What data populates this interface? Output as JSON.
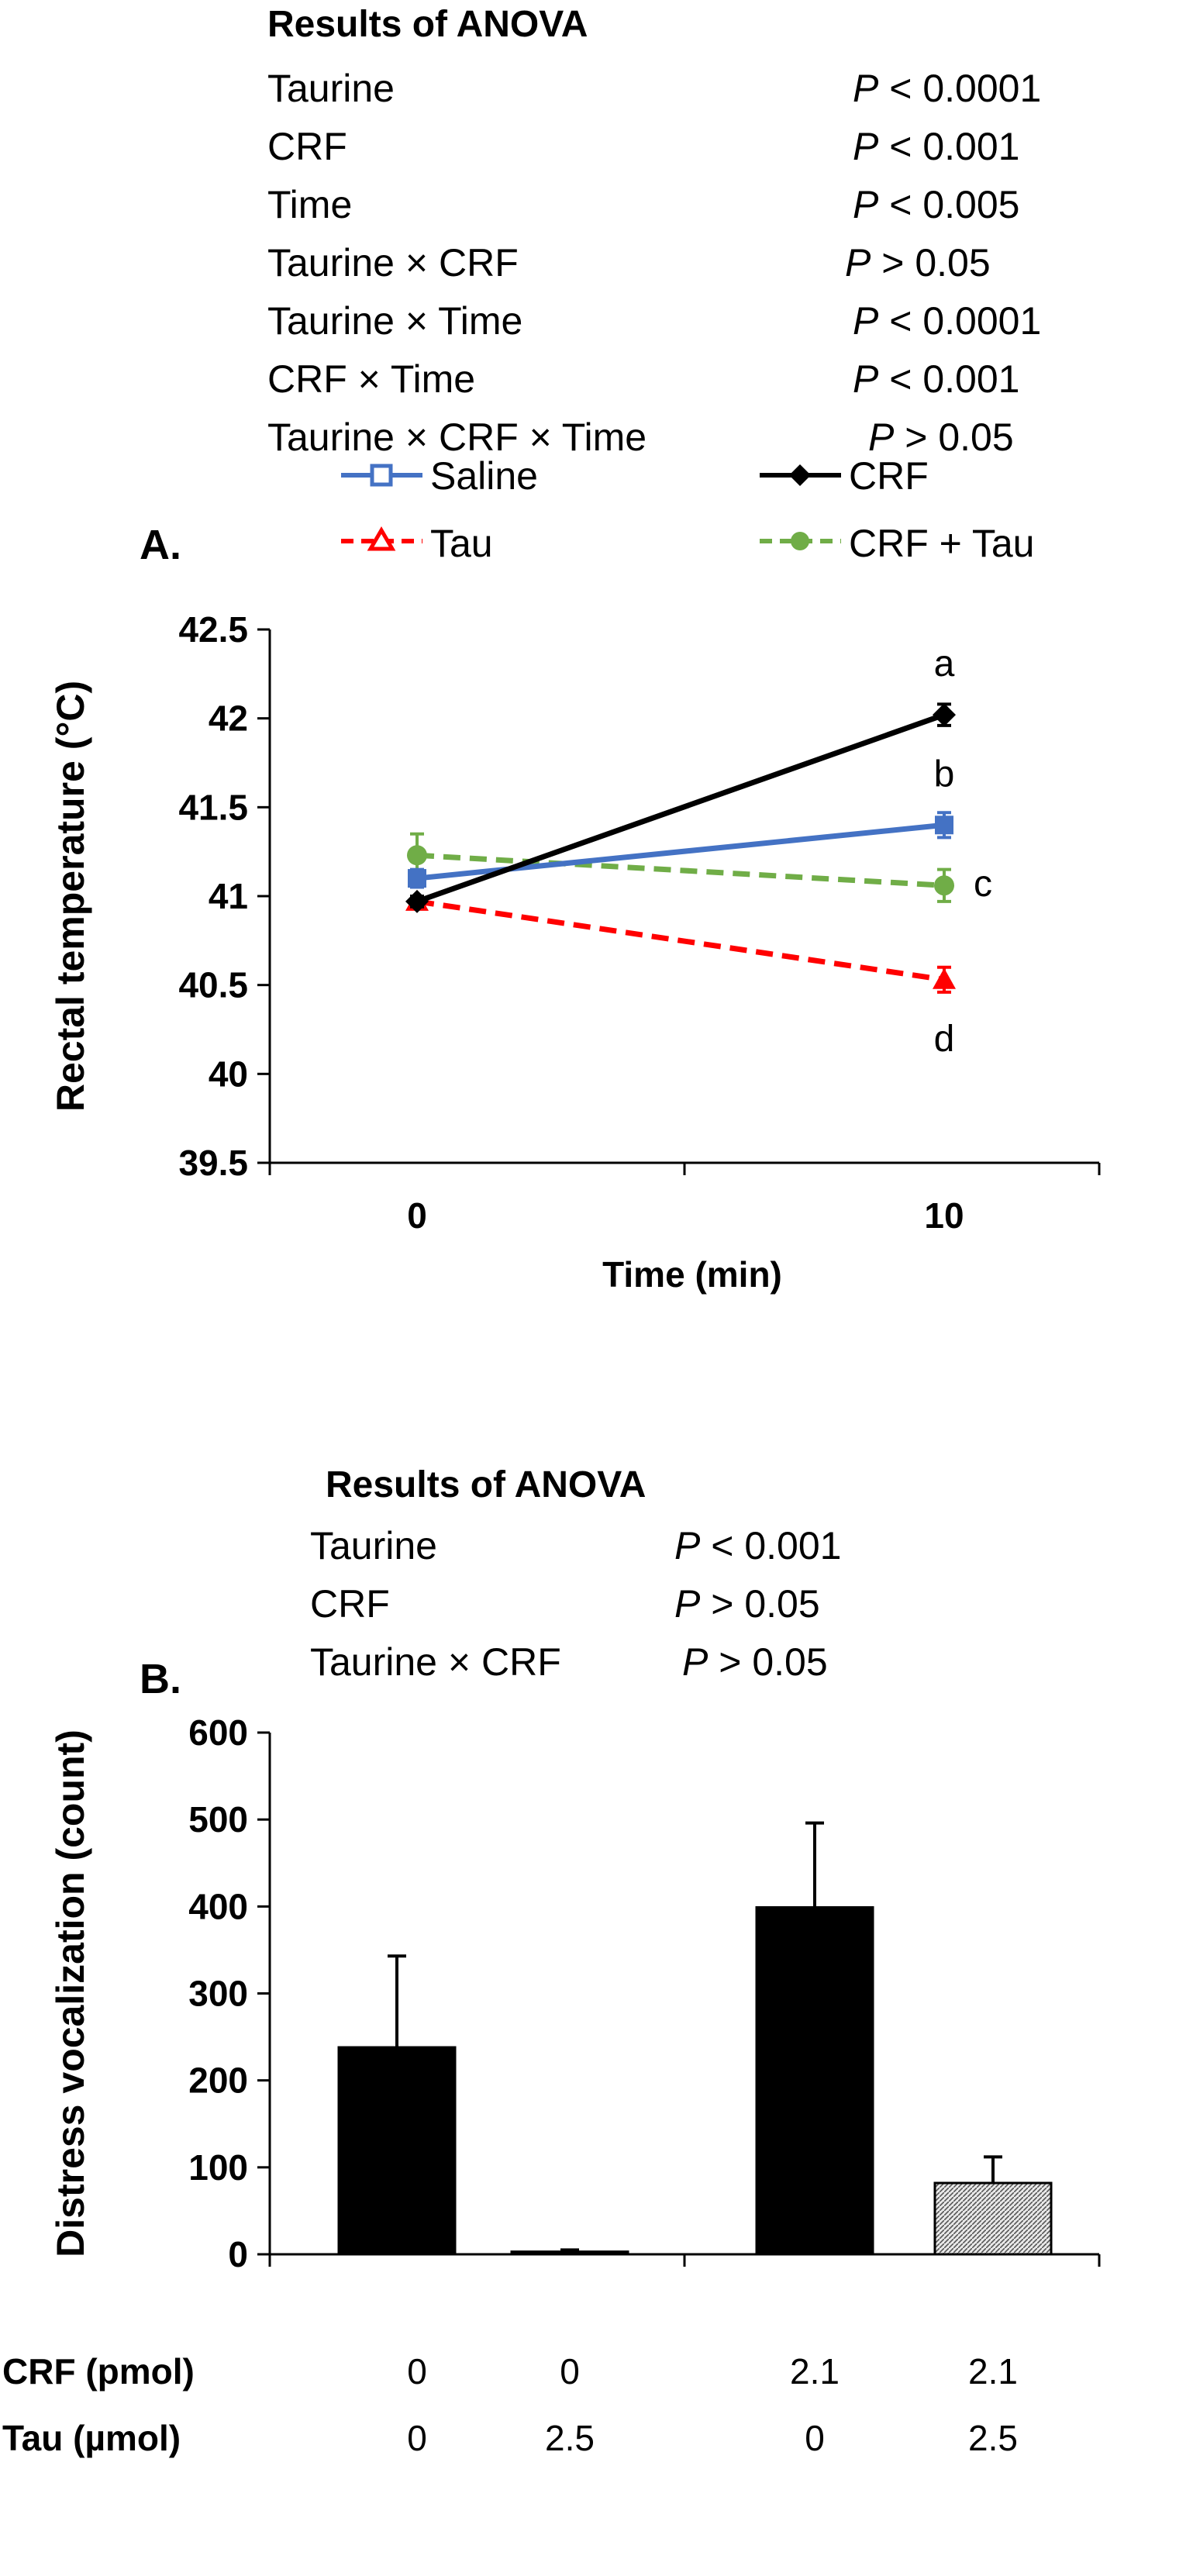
{
  "panelA": {
    "label": "A.",
    "anova_title": "Results of ANOVA",
    "anova_rows": [
      {
        "factor": "Taurine",
        "p": "< 0.0001"
      },
      {
        "factor": "CRF",
        "p": "< 0.001"
      },
      {
        "factor": "Time",
        "p": "< 0.005"
      },
      {
        "factor": "Taurine × CRF",
        "p": "> 0.05"
      },
      {
        "factor": "Taurine × Time",
        "p": "< 0.0001"
      },
      {
        "factor": "CRF × Time",
        "p": "< 0.001"
      },
      {
        "factor": "Taurine × CRF × Time",
        "p": "> 0.05"
      }
    ],
    "p_symbol": "P"
  },
  "panelB": {
    "label": "B.",
    "anova_title": "Results of ANOVA",
    "anova_rows": [
      {
        "factor": "Taurine",
        "p": "< 0.001"
      },
      {
        "factor": "CRF",
        "p": "> 0.05"
      },
      {
        "factor": "Taurine × CRF",
        "p": "> 0.05"
      }
    ],
    "p_symbol": "P",
    "row_labels": {
      "crf": "CRF (pmol)",
      "tau": "Tau (µmol)"
    },
    "crf_values": [
      "0",
      "0",
      "2.1",
      "2.1"
    ],
    "tau_values": [
      "0",
      "2.5",
      "0",
      "2.5"
    ]
  },
  "chart_data": [
    {
      "type": "line",
      "ylabel": "Rectal temperature (°C)",
      "xlabel": "Time (min)",
      "categories": [
        "0",
        "10"
      ],
      "ylim": [
        39.5,
        42.5
      ],
      "yticks": [
        "39.5",
        "40",
        "40.5",
        "41",
        "41.5",
        "42",
        "42.5"
      ],
      "series": [
        {
          "name": "Saline",
          "values": [
            41.1,
            41.4
          ],
          "err": [
            0.05,
            0.07
          ],
          "color": "#4472C4",
          "dash": false,
          "marker": "square",
          "letter": "b"
        },
        {
          "name": "CRF",
          "values": [
            40.97,
            42.02
          ],
          "err": [
            0.03,
            0.06
          ],
          "color": "#000000",
          "dash": false,
          "marker": "diamond",
          "letter": "a"
        },
        {
          "name": "Tau",
          "values": [
            40.97,
            40.53
          ],
          "err": [
            0.03,
            0.07
          ],
          "color": "#FF0000",
          "dash": true,
          "marker": "triangle",
          "letter": "d"
        },
        {
          "name": "CRF + Tau",
          "values": [
            41.23,
            41.06
          ],
          "err": [
            0.12,
            0.09
          ],
          "color": "#70AD47",
          "dash": true,
          "marker": "circle",
          "letter": "c"
        }
      ],
      "legend_position": "top"
    },
    {
      "type": "bar",
      "ylabel": "Distress vocalization (count)",
      "ylim": [
        0,
        600
      ],
      "yticks": [
        "0",
        "100",
        "200",
        "300",
        "400",
        "500",
        "600"
      ],
      "values": [
        238,
        3,
        399,
        82
      ],
      "err": [
        105,
        2,
        97,
        30
      ],
      "colors": [
        "#000000",
        "#000000",
        "#000000",
        "#bdbdbd"
      ],
      "patterned": [
        false,
        false,
        false,
        true
      ]
    }
  ]
}
